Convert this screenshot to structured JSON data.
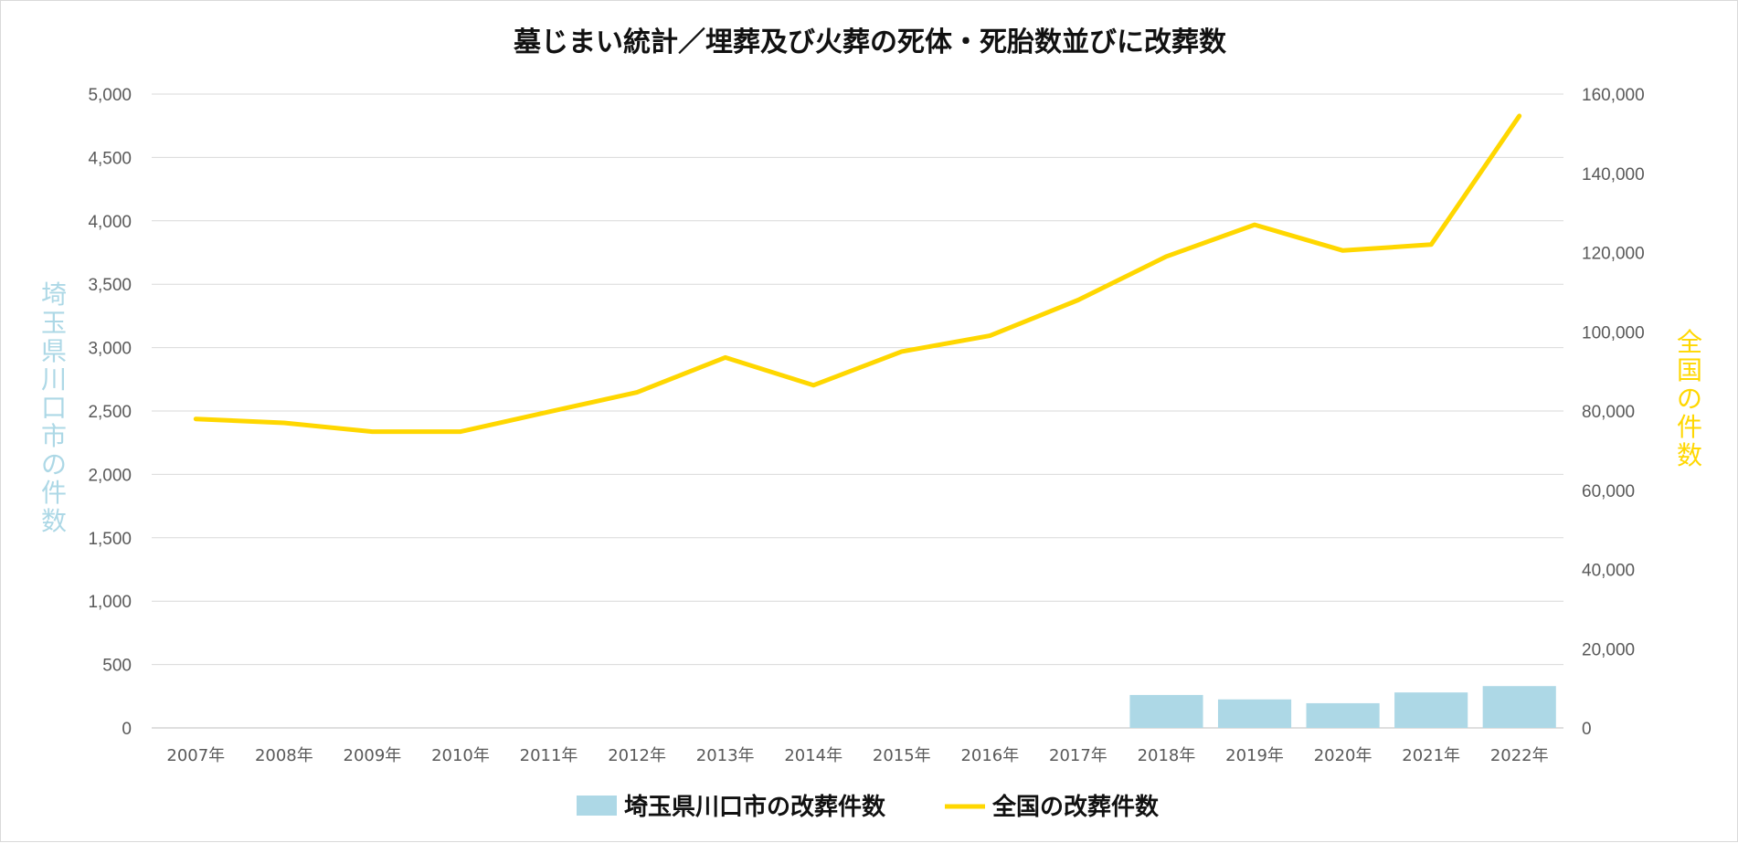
{
  "chart_data": {
    "type": "bar+line",
    "title": "墓じまい統計／埋葬及び火葬の死体・死胎数並びに改葬数",
    "categories": [
      "2007年",
      "2008年",
      "2009年",
      "2010年",
      "2011年",
      "2012年",
      "2013年",
      "2014年",
      "2015年",
      "2016年",
      "2017年",
      "2018年",
      "2019年",
      "2020年",
      "2021年",
      "2022年"
    ],
    "series": [
      {
        "name": "埼玉県川口市の改葬件数",
        "type": "bar",
        "axis": "left",
        "color": "#add8e6",
        "values": [
          null,
          null,
          null,
          null,
          null,
          null,
          null,
          null,
          null,
          null,
          null,
          260,
          225,
          195,
          280,
          330
        ]
      },
      {
        "name": "全国の改葬件数",
        "type": "line",
        "axis": "right",
        "color": "#ffd700",
        "values": [
          78000,
          77000,
          74800,
          74800,
          79800,
          84700,
          93500,
          86500,
          95000,
          99000,
          108000,
          119000,
          127000,
          120500,
          122000,
          154500
        ]
      }
    ],
    "ylabel_left": "埼玉県川口市の件数",
    "ylabel_right": "全国の件数",
    "ylim_left": [
      0,
      5000
    ],
    "ylim_right": [
      0,
      160000
    ],
    "yticks_left": [
      "0",
      "500",
      "1,000",
      "1,500",
      "2,000",
      "2,500",
      "3,000",
      "3,500",
      "4,000",
      "4,500",
      "5,000"
    ],
    "yticks_right": [
      "0",
      "20,000",
      "40,000",
      "60,000",
      "80,000",
      "100,000",
      "120,000",
      "140,000",
      "160,000"
    ],
    "left_axis_color": "#add8e6",
    "right_axis_color": "#ffd700",
    "grid": true,
    "legend_position": "bottom"
  }
}
